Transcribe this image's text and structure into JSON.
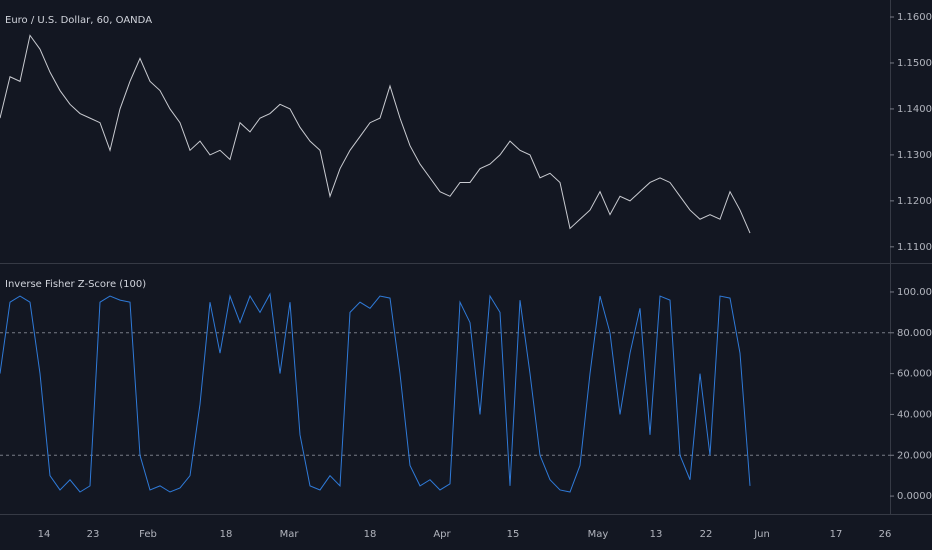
{
  "chart_data": [
    {
      "type": "line",
      "title": "Euro / U.S. Dollar, 60, OANDA",
      "series": [
        {
          "name": "EURUSD",
          "color": "#c9cbd1",
          "values": [
            1.138,
            1.147,
            1.146,
            1.156,
            1.153,
            1.148,
            1.144,
            1.141,
            1.139,
            1.138,
            1.137,
            1.131,
            1.14,
            1.146,
            1.151,
            1.146,
            1.144,
            1.14,
            1.137,
            1.131,
            1.133,
            1.13,
            1.131,
            1.129,
            1.137,
            1.135,
            1.138,
            1.139,
            1.141,
            1.14,
            1.136,
            1.133,
            1.131,
            1.121,
            1.127,
            1.131,
            1.134,
            1.137,
            1.138,
            1.145,
            1.138,
            1.132,
            1.128,
            1.125,
            1.122,
            1.121,
            1.124,
            1.124,
            1.127,
            1.128,
            1.13,
            1.133,
            1.131,
            1.13,
            1.125,
            1.126,
            1.124,
            1.114,
            1.116,
            1.118,
            1.122,
            1.117,
            1.121,
            1.12,
            1.122,
            1.124,
            1.125,
            1.124,
            1.121,
            1.118,
            1.116,
            1.117,
            1.116,
            1.122,
            1.118,
            1.113
          ]
        }
      ],
      "ylim": [
        1.1067,
        1.1637
      ],
      "yticks": [
        {
          "value": 1.11,
          "label": "1.11000"
        },
        {
          "value": 1.12,
          "label": "1.12000"
        },
        {
          "value": 1.13,
          "label": "1.13000"
        },
        {
          "value": 1.14,
          "label": "1.14000"
        },
        {
          "value": 1.15,
          "label": "1.15000"
        },
        {
          "value": 1.16,
          "label": "1.16000"
        }
      ]
    },
    {
      "type": "line",
      "title": "Inverse Fisher Z-Score (100)",
      "series": [
        {
          "name": "IFZ",
          "color": "#2f7ad8",
          "values": [
            60,
            95,
            98,
            95,
            60,
            10,
            3,
            8,
            2,
            5,
            95,
            98,
            96,
            95,
            20,
            3,
            5,
            2,
            4,
            10,
            45,
            95,
            70,
            98,
            85,
            98,
            90,
            99,
            60,
            95,
            30,
            5,
            3,
            10,
            5,
            90,
            95,
            92,
            98,
            97,
            60,
            15,
            5,
            8,
            3,
            6,
            95,
            85,
            40,
            98,
            90,
            5,
            96,
            60,
            20,
            8,
            3,
            2,
            15,
            60,
            98,
            80,
            40,
            70,
            92,
            30,
            98,
            96,
            20,
            8,
            60,
            20,
            98,
            97,
            70,
            5
          ]
        }
      ],
      "ylim": [
        -7.8,
        113.7
      ],
      "levels": [
        80,
        20
      ],
      "yticks": [
        {
          "value": 0,
          "label": "0.00000"
        },
        {
          "value": 20,
          "label": "20.00000"
        },
        {
          "value": 40,
          "label": "40.00000"
        },
        {
          "value": 60,
          "label": "60.00000"
        },
        {
          "value": 80,
          "label": "80.00000"
        },
        {
          "value": 100,
          "label": "100.00000"
        }
      ]
    }
  ],
  "x_axis_labels": [
    "14",
    "23",
    "Feb",
    "18",
    "Mar",
    "18",
    "Apr",
    "15",
    "May",
    "13",
    "22",
    "Jun",
    "17",
    "26"
  ]
}
